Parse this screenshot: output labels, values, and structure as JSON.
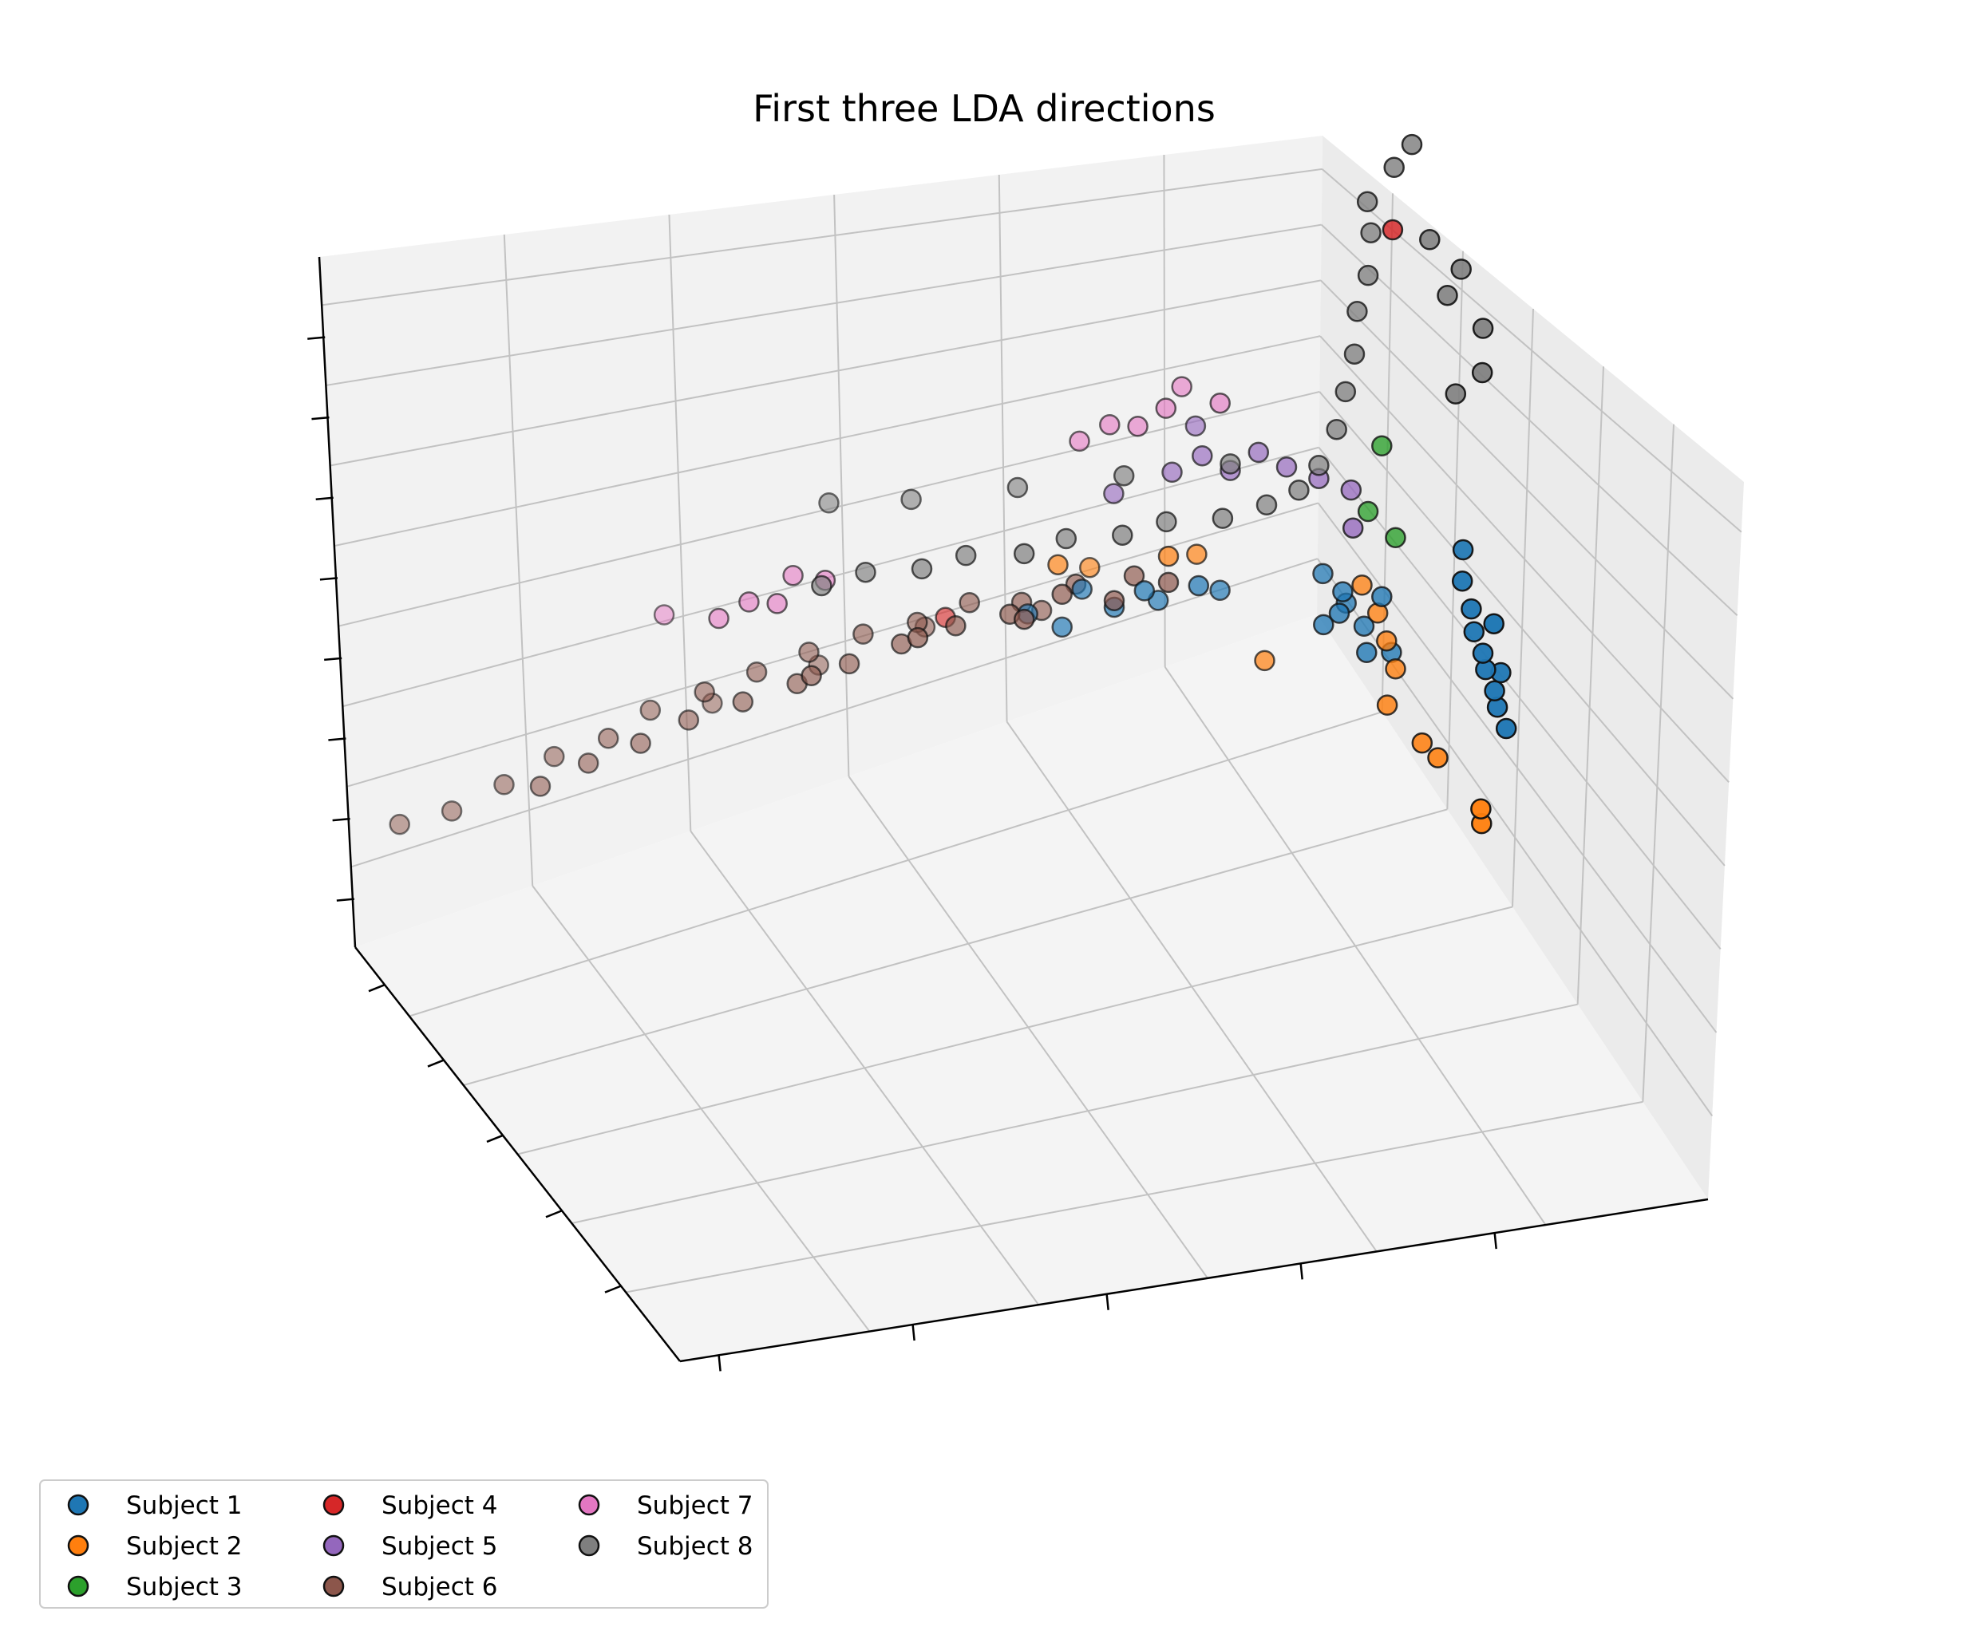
{
  "chart_data": {
    "type": "scatter",
    "projection": "3d",
    "title": "First three LDA directions",
    "xlabel": "",
    "ylabel": "",
    "zlabel": "",
    "tick_labels_visible": false,
    "grid": true,
    "legend": {
      "placement": "lower-left",
      "columns": 3
    },
    "series": [
      {
        "name": "Subject 1",
        "color": "#1f77b4",
        "points": [
          [
            0.25,
            0.35,
            0.28
          ],
          [
            0.3,
            0.4,
            0.26
          ],
          [
            0.35,
            0.38,
            0.3
          ],
          [
            0.4,
            0.42,
            0.27
          ],
          [
            0.45,
            0.45,
            0.29
          ],
          [
            0.5,
            0.4,
            0.25
          ],
          [
            0.55,
            0.48,
            0.28
          ],
          [
            0.62,
            0.42,
            0.24
          ],
          [
            0.78,
            0.55,
            0.18
          ],
          [
            0.8,
            0.58,
            0.2
          ],
          [
            0.82,
            0.55,
            0.22
          ],
          [
            0.84,
            0.52,
            0.19
          ],
          [
            0.86,
            0.56,
            0.16
          ],
          [
            0.88,
            0.6,
            0.21
          ],
          [
            0.8,
            0.5,
            0.24
          ],
          [
            0.84,
            0.62,
            0.14
          ],
          [
            0.9,
            0.6,
            0.12
          ],
          [
            0.92,
            0.9,
            0.3
          ],
          [
            0.93,
            0.92,
            0.26
          ],
          [
            0.94,
            0.91,
            0.22
          ],
          [
            0.95,
            0.93,
            0.19
          ],
          [
            0.96,
            0.92,
            0.16
          ],
          [
            0.97,
            0.94,
            0.13
          ],
          [
            0.98,
            0.93,
            0.1
          ],
          [
            0.99,
            0.95,
            0.07
          ],
          [
            0.93,
            0.88,
            0.34
          ],
          [
            0.96,
            0.96,
            0.24
          ],
          [
            1.0,
            0.9,
            0.14
          ]
        ]
      },
      {
        "name": "Subject 2",
        "color": "#ff7f0e",
        "points": [
          [
            0.3,
            0.38,
            0.35
          ],
          [
            0.4,
            0.3,
            0.3
          ],
          [
            0.5,
            0.45,
            0.33
          ],
          [
            0.58,
            0.4,
            0.3
          ],
          [
            0.7,
            0.45,
            0.12
          ],
          [
            0.86,
            0.55,
            0.22
          ],
          [
            0.88,
            0.58,
            0.18
          ],
          [
            0.89,
            0.6,
            0.14
          ],
          [
            0.9,
            0.62,
            0.1
          ],
          [
            0.87,
            0.65,
            0.06
          ],
          [
            0.9,
            0.75,
            0.02
          ],
          [
            0.92,
            0.78,
            0.0
          ],
          [
            0.95,
            0.92,
            -0.05
          ],
          [
            0.96,
            0.9,
            -0.08
          ]
        ]
      },
      {
        "name": "Subject 3",
        "color": "#2ca02c",
        "points": [
          [
            0.86,
            0.58,
            0.34
          ],
          [
            0.88,
            0.6,
            0.44
          ],
          [
            0.9,
            0.62,
            0.3
          ]
        ]
      },
      {
        "name": "Subject 4",
        "color": "#d62728",
        "points": [
          [
            0.86,
            0.7,
            0.8
          ],
          [
            0.1,
            0.3,
            0.3
          ]
        ]
      },
      {
        "name": "Subject 5",
        "color": "#9467bd",
        "points": [
          [
            0.45,
            0.3,
            0.4
          ],
          [
            0.55,
            0.35,
            0.42
          ],
          [
            0.6,
            0.38,
            0.44
          ],
          [
            0.65,
            0.4,
            0.41
          ],
          [
            0.7,
            0.42,
            0.43
          ],
          [
            0.75,
            0.44,
            0.4
          ],
          [
            0.8,
            0.48,
            0.38
          ],
          [
            0.85,
            0.52,
            0.36
          ],
          [
            0.82,
            0.6,
            0.33
          ],
          [
            0.62,
            0.3,
            0.46
          ]
        ]
      },
      {
        "name": "Subject 6",
        "color": "#8c564b",
        "points": [
          [
            -0.95,
            0.1,
            0.2
          ],
          [
            -0.85,
            0.12,
            0.2
          ],
          [
            -0.75,
            0.14,
            0.22
          ],
          [
            -0.7,
            0.2,
            0.22
          ],
          [
            -0.65,
            0.15,
            0.24
          ],
          [
            -0.6,
            0.2,
            0.23
          ],
          [
            -0.55,
            0.18,
            0.25
          ],
          [
            -0.5,
            0.22,
            0.24
          ],
          [
            -0.45,
            0.15,
            0.26
          ],
          [
            -0.4,
            0.22,
            0.25
          ],
          [
            -0.35,
            0.18,
            0.27
          ],
          [
            -0.3,
            0.25,
            0.26
          ],
          [
            -0.25,
            0.2,
            0.28
          ],
          [
            -0.2,
            0.28,
            0.27
          ],
          [
            -0.15,
            0.22,
            0.29
          ],
          [
            -0.1,
            0.3,
            0.28
          ],
          [
            -0.05,
            0.25,
            0.3
          ],
          [
            0.0,
            0.32,
            0.29
          ],
          [
            0.05,
            0.28,
            0.3
          ],
          [
            0.1,
            0.35,
            0.3
          ],
          [
            0.15,
            0.3,
            0.31
          ],
          [
            0.2,
            0.38,
            0.3
          ],
          [
            0.25,
            0.32,
            0.29
          ],
          [
            0.3,
            0.4,
            0.31
          ],
          [
            0.35,
            0.35,
            0.3
          ],
          [
            0.4,
            0.42,
            0.28
          ],
          [
            0.45,
            0.4,
            0.3
          ],
          [
            0.5,
            0.45,
            0.29
          ],
          [
            -0.3,
            0.1,
            0.22
          ],
          [
            -0.1,
            0.15,
            0.24
          ],
          [
            0.1,
            0.2,
            0.26
          ],
          [
            0.3,
            0.3,
            0.26
          ],
          [
            -0.2,
            0.35,
            0.3
          ],
          [
            0.0,
            0.4,
            0.32
          ],
          [
            0.2,
            0.45,
            0.31
          ]
        ]
      },
      {
        "name": "Subject 7",
        "color": "#e377c2",
        "points": [
          [
            -0.35,
            0.25,
            0.4
          ],
          [
            -0.3,
            0.28,
            0.42
          ],
          [
            -0.25,
            0.3,
            0.41
          ],
          [
            -0.2,
            0.26,
            0.43
          ],
          [
            -0.15,
            0.3,
            0.42
          ],
          [
            0.4,
            0.25,
            0.48
          ],
          [
            0.45,
            0.28,
            0.5
          ],
          [
            0.5,
            0.3,
            0.49
          ],
          [
            0.55,
            0.32,
            0.51
          ],
          [
            0.6,
            0.28,
            0.52
          ],
          [
            0.65,
            0.35,
            0.5
          ],
          [
            -0.4,
            0.1,
            0.38
          ]
        ]
      },
      {
        "name": "Subject 8",
        "color": "#7f7f7f",
        "points": [
          [
            -0.2,
            0.4,
            0.45
          ],
          [
            -0.1,
            0.38,
            0.44
          ],
          [
            0.0,
            0.42,
            0.43
          ],
          [
            0.1,
            0.4,
            0.42
          ],
          [
            0.2,
            0.45,
            0.41
          ],
          [
            0.3,
            0.42,
            0.4
          ],
          [
            0.4,
            0.46,
            0.39
          ],
          [
            0.5,
            0.44,
            0.38
          ],
          [
            0.6,
            0.48,
            0.37
          ],
          [
            0.7,
            0.46,
            0.36
          ],
          [
            0.75,
            0.5,
            0.38
          ],
          [
            0.8,
            0.48,
            0.4
          ],
          [
            0.82,
            0.52,
            0.46
          ],
          [
            0.83,
            0.54,
            0.52
          ],
          [
            0.84,
            0.56,
            0.58
          ],
          [
            0.85,
            0.55,
            0.64
          ],
          [
            0.86,
            0.58,
            0.7
          ],
          [
            0.87,
            0.57,
            0.76
          ],
          [
            0.85,
            0.6,
            0.82
          ],
          [
            0.88,
            0.66,
            0.88
          ],
          [
            0.9,
            0.7,
            0.92
          ],
          [
            0.92,
            0.74,
            0.78
          ],
          [
            0.94,
            0.78,
            0.7
          ],
          [
            0.96,
            0.8,
            0.74
          ],
          [
            0.98,
            0.86,
            0.66
          ],
          [
            0.97,
            0.88,
            0.6
          ],
          [
            0.94,
            0.82,
            0.56
          ],
          [
            -0.1,
            0.2,
            0.5
          ],
          [
            0.05,
            0.25,
            0.48
          ],
          [
            0.25,
            0.3,
            0.46
          ],
          [
            0.45,
            0.35,
            0.44
          ],
          [
            0.65,
            0.4,
            0.42
          ]
        ]
      }
    ]
  }
}
